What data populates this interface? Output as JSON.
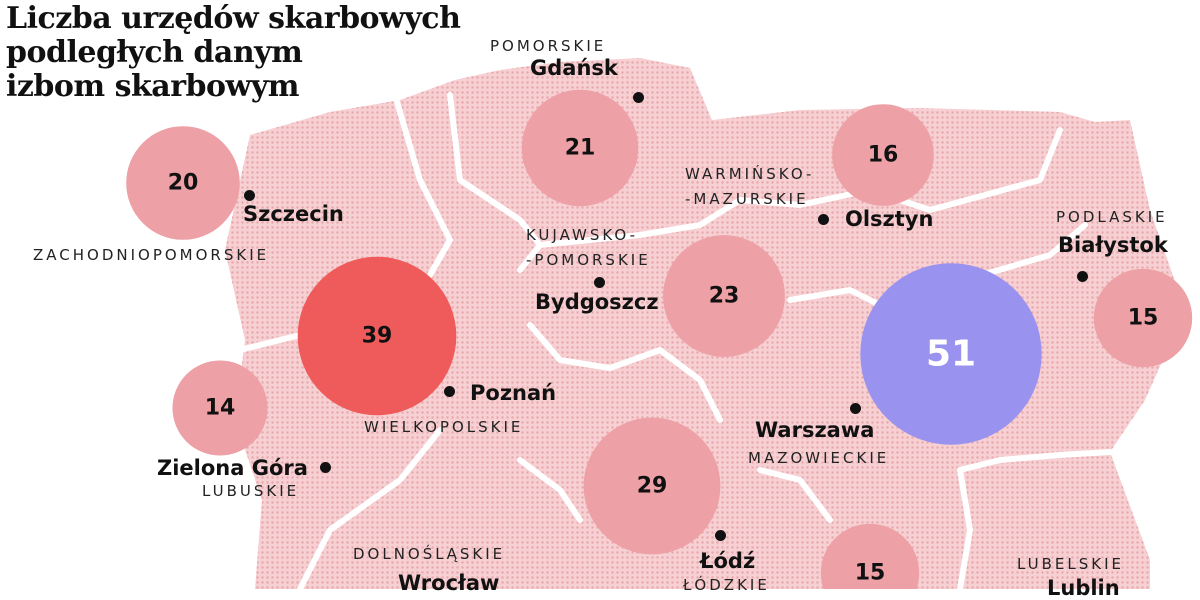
{
  "title": {
    "line1": "Liczba urzędów skarbowych",
    "line2": "podległych danym",
    "line3": "izbom skarbowym"
  },
  "colors": {
    "map_fill": "#f6d0d2",
    "map_dots": "#e8a7ab",
    "circle_default": "#eda0a6",
    "circle_highlight_red": "#ef5b5b",
    "circle_highlight_blue": "#9a92ef"
  },
  "chart_data": {
    "type": "bubble-map",
    "title": "Liczba urzędów skarbowych podległych danym izbom skarbowym",
    "series": [
      {
        "region": "ZACHODNIOPOMORSKIE",
        "city": "Szczecin",
        "value": 20
      },
      {
        "region": "POMORSKIE",
        "city": "Gdańsk",
        "value": 21
      },
      {
        "region": "WARMIŃSKO-MAZURSKIE",
        "city": "Olsztyn",
        "value": 16
      },
      {
        "region": "PODLASKIE",
        "city": "Białystok",
        "value": 15
      },
      {
        "region": "KUJAWSKO-POMORSKIE",
        "city": "Bydgoszcz",
        "value": 23
      },
      {
        "region": "WIELKOPOLSKIE",
        "city": "Poznań",
        "value": 39
      },
      {
        "region": "MAZOWIECKIE",
        "city": "Warszawa",
        "value": 51
      },
      {
        "region": "LUBUSKIE",
        "city": "Zielona Góra",
        "value": 14
      },
      {
        "region": "ŁÓDZKIE",
        "city": "Łódź",
        "value": 29
      },
      {
        "region": "DOLNOŚLĄSKIE",
        "city": "Wrocław",
        "value": null
      },
      {
        "region": "LUBELSKIE",
        "city": "Lublin",
        "value": null
      },
      {
        "region": "",
        "city": "",
        "value": 15
      }
    ]
  },
  "regions": {
    "pomorskie": "POMORSKIE",
    "zachodniopomorskie": "ZACHODNIOPOMORSKIE",
    "warminsko1": "WARMIŃSKO-",
    "warminsko2": "-MAZURSKIE",
    "podlaskie": "PODLASKIE",
    "kujawsko1": "KUJAWSKO-",
    "kujawsko2": "-POMORSKIE",
    "wielkopolskie": "WIELKOPOLSKIE",
    "mazowieckie": "MAZOWIECKIE",
    "lubuskie": "LUBUSKIE",
    "dolnoslaskie": "DOLNOŚLĄSKIE",
    "lodzkie": "ŁÓDZKIE",
    "lubelskie": "LUBELSKIE"
  },
  "cities": {
    "gdansk": "Gdańsk",
    "szczecin": "Szczecin",
    "olsztyn": "Olsztyn",
    "bialystok": "Białystok",
    "bydgoszcz": "Bydgoszcz",
    "poznan": "Poznań",
    "warszawa": "Warszawa",
    "zielona_gora": "Zielona Góra",
    "lodz": "Łódź",
    "wroclaw": "Wrocław",
    "lublin": "Lublin"
  }
}
